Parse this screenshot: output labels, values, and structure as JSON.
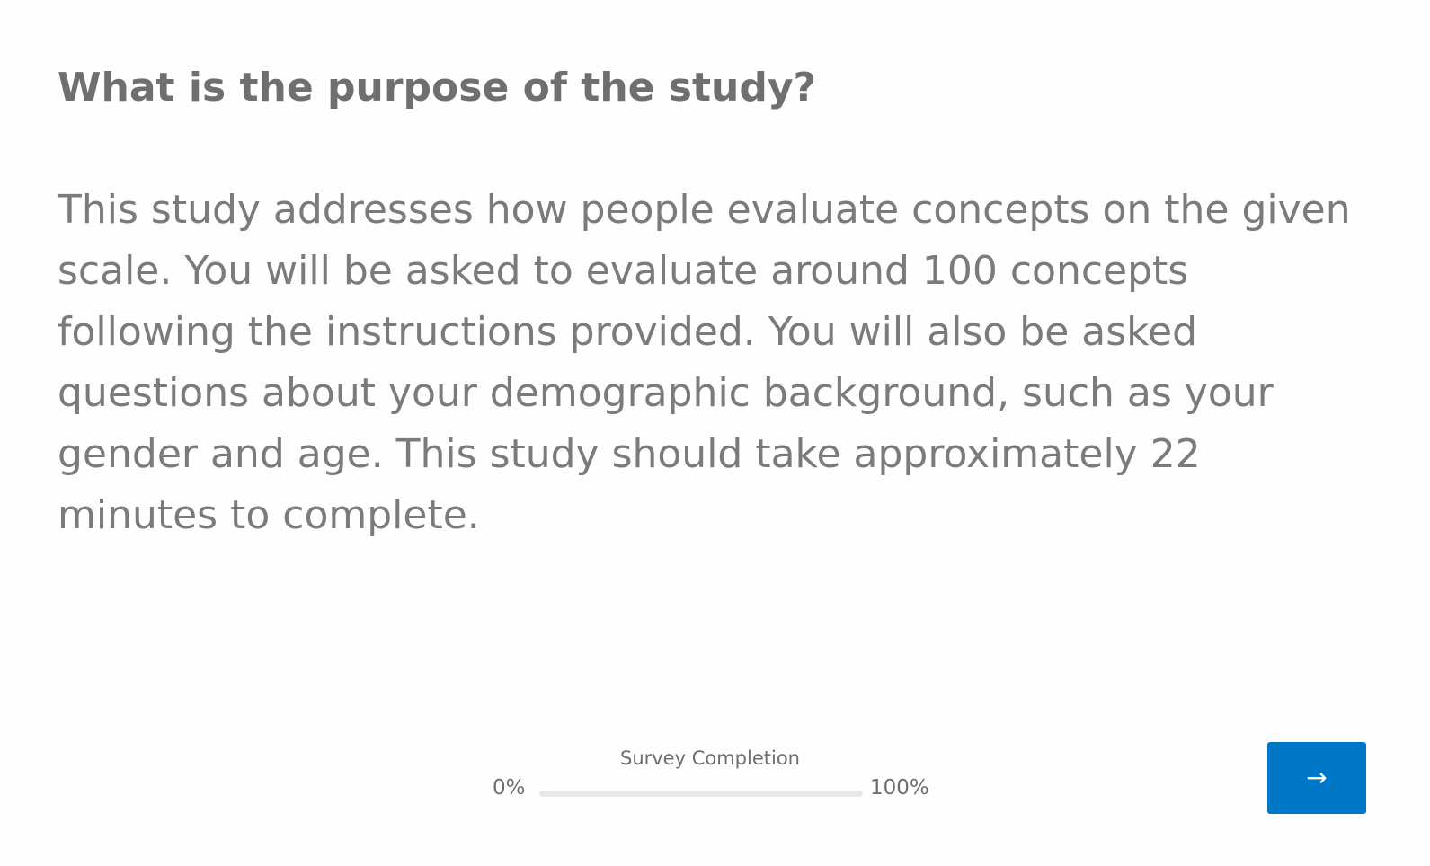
{
  "question": {
    "title": "What is the purpose of the study?",
    "body": "This study addresses how people evaluate concepts on the given scale. You will be asked to evaluate around 100 concepts following the instructions provided. You will also be asked questions about your demographic background, such as your gender and age. This study should take approximately 22 minutes to complete."
  },
  "progress": {
    "label": "Survey Completion",
    "min_label": "0%",
    "max_label": "100%",
    "value_percent": 0
  },
  "navigation": {
    "next_icon": "arrow-right-icon",
    "next_glyph": "→"
  },
  "colors": {
    "accent": "#0077c6",
    "text": "#757575",
    "track": "#e8e8e8"
  }
}
